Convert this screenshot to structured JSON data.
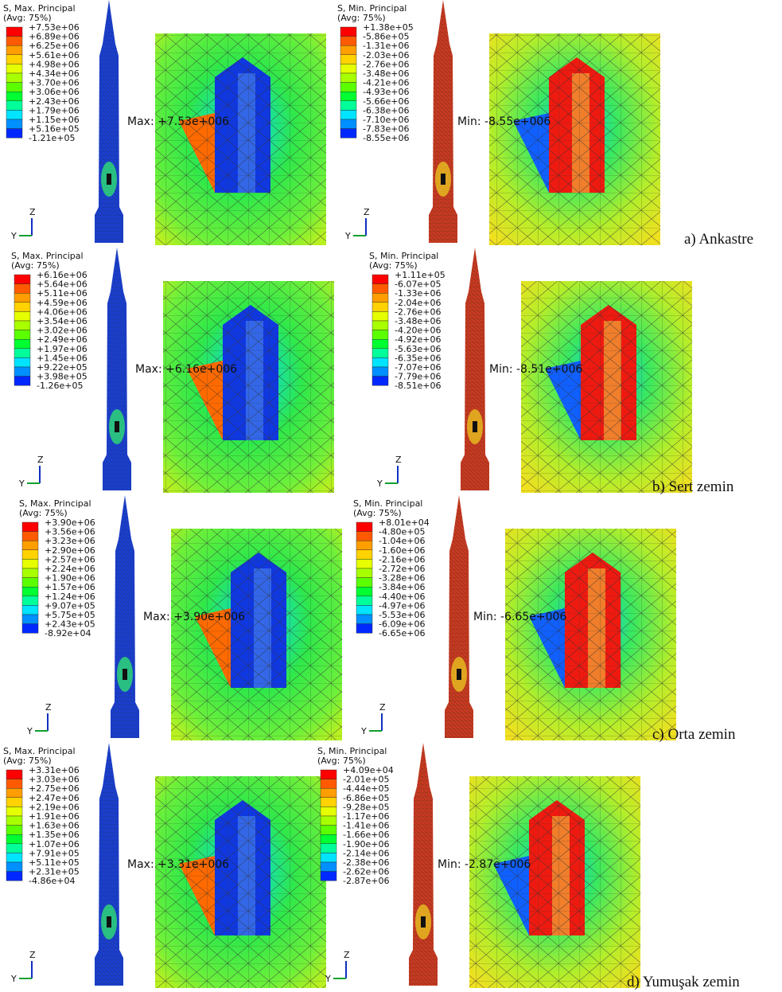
{
  "panels": [
    {
      "row_label": "a) Ankastre",
      "left": {
        "title": [
          "S, Max. Principal",
          "(Avg: 75%)"
        ],
        "legend": [
          "+7.53e+06",
          "+6.89e+06",
          "+6.25e+06",
          "+5.61e+06",
          "+4.98e+06",
          "+4.34e+06",
          "+3.70e+06",
          "+3.06e+06",
          "+2.43e+06",
          "+1.79e+06",
          "+1.15e+06",
          "+5.16e+05",
          "-1.21e+05"
        ],
        "annotation": "Max: +7.53e+006",
        "triad": [
          "Z",
          "Y"
        ]
      },
      "right": {
        "title": [
          "S, Min. Principal",
          "(Avg: 75%)"
        ],
        "legend": [
          "+1.38e+05",
          "-5.86e+05",
          "-1.31e+06",
          "-2.03e+06",
          "-2.76e+06",
          "-3.48e+06",
          "-4.21e+06",
          "-4.93e+06",
          "-5.66e+06",
          "-6.38e+06",
          "-7.10e+06",
          "-7.83e+06",
          "-8.55e+06"
        ],
        "annotation": "Min: -8.55e+006",
        "triad": [
          "Z",
          "Y"
        ]
      }
    },
    {
      "row_label": "b) Sert zemin",
      "left": {
        "title": [
          "S, Max. Principal",
          "(Avg: 75%)"
        ],
        "legend": [
          "+6.16e+06",
          "+5.64e+06",
          "+5.11e+06",
          "+4.59e+06",
          "+4.06e+06",
          "+3.54e+06",
          "+3.02e+06",
          "+2.49e+06",
          "+1.97e+06",
          "+1.45e+06",
          "+9.22e+05",
          "+3.98e+05",
          "-1.26e+05"
        ],
        "annotation": "Max: +6.16e+006",
        "triad": [
          "Z",
          "Y"
        ]
      },
      "right": {
        "title": [
          "S, Min. Principal",
          "(Avg: 75%)"
        ],
        "legend": [
          "+1.11e+05",
          "-6.07e+05",
          "-1.33e+06",
          "-2.04e+06",
          "-2.76e+06",
          "-3.48e+06",
          "-4.20e+06",
          "-4.92e+06",
          "-5.63e+06",
          "-6.35e+06",
          "-7.07e+06",
          "-7.79e+06",
          "-8.51e+06"
        ],
        "annotation": "Min: -8.51e+006",
        "triad": [
          "Z",
          "Y"
        ]
      }
    },
    {
      "row_label": "c) Orta zemin",
      "left": {
        "title": [
          "S, Max. Principal",
          "(Avg: 75%)"
        ],
        "legend": [
          "+3.90e+06",
          "+3.56e+06",
          "+3.23e+06",
          "+2.90e+06",
          "+2.57e+06",
          "+2.24e+06",
          "+1.90e+06",
          "+1.57e+06",
          "+1.24e+06",
          "+9.07e+05",
          "+5.75e+05",
          "+2.43e+05",
          "-8.92e+04"
        ],
        "annotation": "Max: +3.90e+006",
        "triad": [
          "Z",
          "Y"
        ]
      },
      "right": {
        "title": [
          "S, Min. Principal",
          "(Avg: 75%)"
        ],
        "legend": [
          "+8.01e+04",
          "-4.80e+05",
          "-1.04e+06",
          "-1.60e+06",
          "-2.16e+06",
          "-2.72e+06",
          "-3.28e+06",
          "-3.84e+06",
          "-4.40e+06",
          "-4.97e+06",
          "-5.53e+06",
          "-6.09e+06",
          "-6.65e+06"
        ],
        "annotation": "Min: -6.65e+006",
        "triad": [
          "Z",
          "Y"
        ]
      }
    },
    {
      "row_label": "d) Yumuşak zemin",
      "left": {
        "title": [
          "S, Max. Principal",
          "(Avg: 75%)"
        ],
        "legend": [
          "+3.31e+06",
          "+3.03e+06",
          "+2.75e+06",
          "+2.47e+06",
          "+2.19e+06",
          "+1.91e+06",
          "+1.63e+06",
          "+1.35e+06",
          "+1.07e+06",
          "+7.91e+05",
          "+5.11e+05",
          "+2.31e+05",
          "-4.86e+04"
        ],
        "annotation": "Max: +3.31e+006",
        "triad": [
          "Z",
          "Y"
        ]
      },
      "right": {
        "title": [
          "S, Min. Principal",
          "(Avg: 75%)"
        ],
        "legend": [
          "+4.09e+04",
          "-2.01e+05",
          "-4.44e+05",
          "-6.86e+05",
          "-9.28e+05",
          "-1.17e+06",
          "-1.41e+06",
          "-1.66e+06",
          "-1.90e+06",
          "-2.14e+06",
          "-2.38e+06",
          "-2.62e+06",
          "-2.87e+06"
        ],
        "annotation": "Min: -2.87e+006",
        "triad": [
          "Z",
          "Y"
        ]
      }
    }
  ]
}
